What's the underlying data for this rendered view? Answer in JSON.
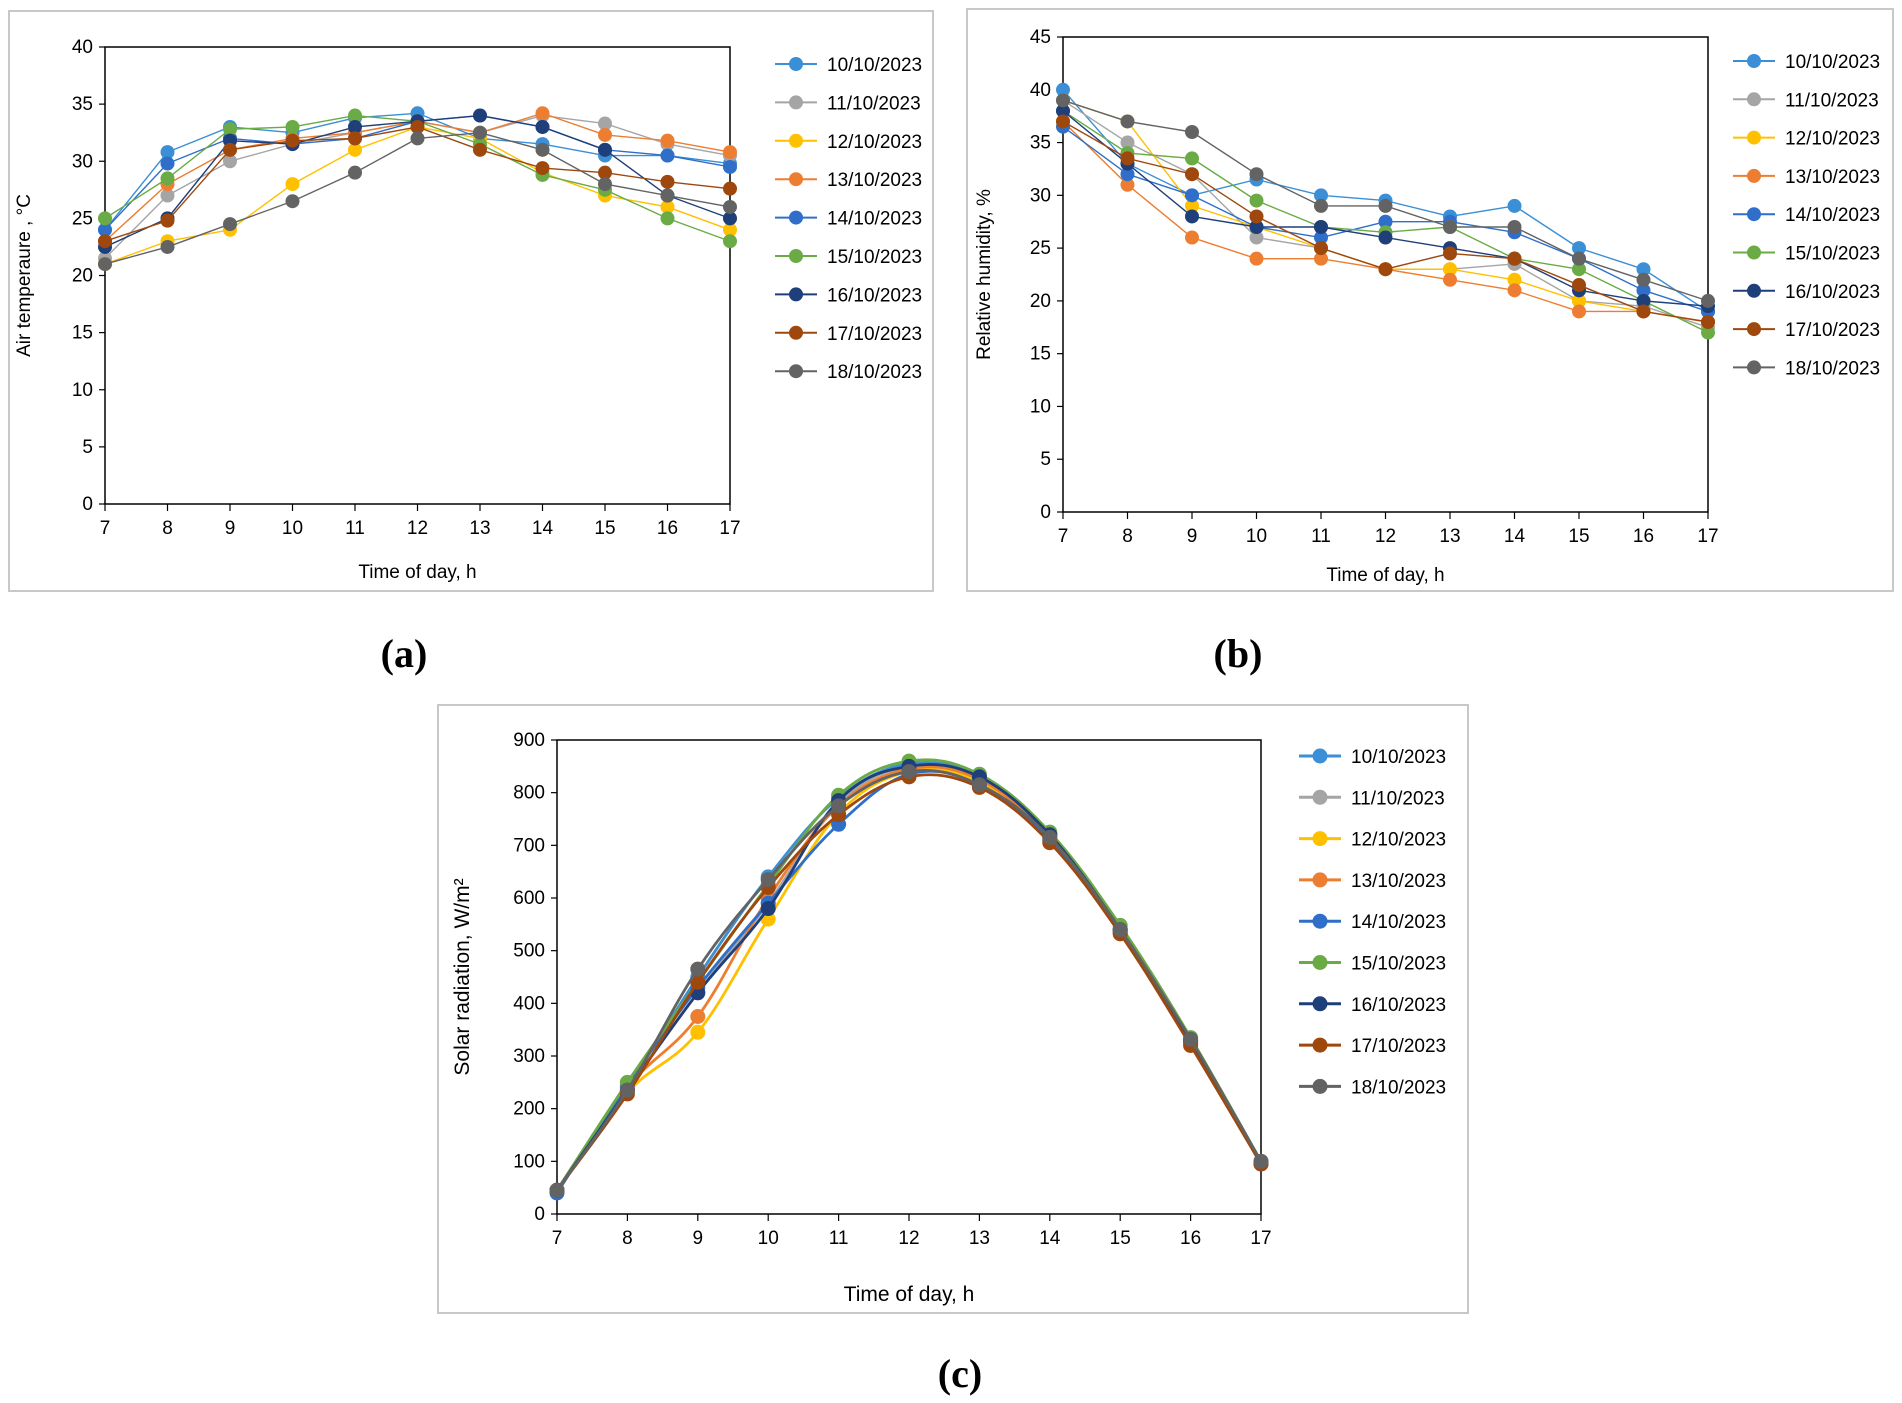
{
  "colors": {
    "10/10/2023": "#3a8fd6",
    "11/10/2023": "#a5a5a5",
    "12/10/2023": "#ffc000",
    "13/10/2023": "#ed7d31",
    "14/10/2023": "#2f6fc9",
    "15/10/2023": "#6aab45",
    "16/10/2023": "#1f3f7a",
    "17/10/2023": "#9e480e",
    "18/10/2023": "#636363"
  },
  "captions": {
    "a": "(a)",
    "b": "(b)",
    "c": "(c)"
  },
  "chart_data": [
    {
      "id": "a",
      "type": "line",
      "title": "",
      "xlabel": "Time of day, h",
      "ylabel": "Air temperaure , °C",
      "x": [
        7,
        8,
        9,
        10,
        11,
        12,
        13,
        14,
        15,
        16,
        17
      ],
      "xlim": [
        7,
        17
      ],
      "ylim": [
        0,
        40
      ],
      "yticks": [
        0,
        5,
        10,
        15,
        20,
        25,
        30,
        35,
        40
      ],
      "legend": "right",
      "series": [
        {
          "name": "10/10/2023",
          "values": [
            24.0,
            30.8,
            33.0,
            32.5,
            33.8,
            34.2,
            32.0,
            31.5,
            30.5,
            30.5,
            29.8
          ]
        },
        {
          "name": "11/10/2023",
          "values": [
            21.5,
            27.0,
            30.0,
            31.5,
            32.5,
            33.5,
            32.5,
            34.0,
            33.3,
            31.5,
            30.5
          ]
        },
        {
          "name": "12/10/2023",
          "values": [
            21.0,
            23.0,
            24.0,
            28.0,
            31.0,
            33.0,
            32.0,
            29.0,
            27.0,
            26.0,
            24.0
          ]
        },
        {
          "name": "13/10/2023",
          "values": [
            23.0,
            28.0,
            31.0,
            32.0,
            32.5,
            33.5,
            32.5,
            34.2,
            32.3,
            31.8,
            30.8
          ]
        },
        {
          "name": "14/10/2023",
          "values": [
            24.0,
            29.8,
            32.0,
            31.5,
            32.0,
            33.5,
            34.0,
            33.0,
            31.0,
            30.5,
            29.5
          ]
        },
        {
          "name": "15/10/2023",
          "values": [
            25.0,
            28.5,
            32.8,
            33.0,
            34.0,
            33.5,
            31.5,
            28.8,
            27.5,
            25.0,
            23.0
          ]
        },
        {
          "name": "16/10/2023",
          "values": [
            22.5,
            25.0,
            31.8,
            31.5,
            33.0,
            33.5,
            34.0,
            33.0,
            31.0,
            27.0,
            25.0
          ]
        },
        {
          "name": "17/10/2023",
          "values": [
            23.0,
            24.8,
            31.0,
            31.8,
            32.0,
            33.0,
            31.0,
            29.4,
            29.0,
            28.2,
            27.6
          ]
        },
        {
          "name": "18/10/2023",
          "values": [
            21.0,
            22.5,
            24.5,
            26.5,
            29.0,
            32.0,
            32.5,
            31.0,
            28.0,
            27.0,
            26.0
          ]
        }
      ]
    },
    {
      "id": "b",
      "type": "line",
      "title": "",
      "xlabel": "Time of day, h",
      "ylabel": "Relative humidity, %",
      "x": [
        7,
        8,
        9,
        10,
        11,
        12,
        13,
        14,
        15,
        16,
        17
      ],
      "xlim": [
        7,
        17
      ],
      "ylim": [
        0,
        45
      ],
      "yticks": [
        0,
        5,
        10,
        15,
        20,
        25,
        30,
        35,
        40,
        45
      ],
      "legend": "right",
      "series": [
        {
          "name": "10/10/2023",
          "values": [
            40.0,
            33.0,
            30.0,
            31.5,
            30.0,
            29.5,
            28.0,
            29.0,
            25.0,
            23.0,
            19.0
          ]
        },
        {
          "name": "11/10/2023",
          "values": [
            39.0,
            35.0,
            32.0,
            26.0,
            25.0,
            23.0,
            23.0,
            23.5,
            20.0,
            19.5,
            17.5
          ]
        },
        {
          "name": "12/10/2023",
          "values": [
            39.0,
            37.0,
            29.0,
            27.0,
            25.0,
            23.0,
            23.0,
            22.0,
            20.0,
            19.0,
            18.0
          ]
        },
        {
          "name": "13/10/2023",
          "values": [
            37.0,
            31.0,
            26.0,
            24.0,
            24.0,
            23.0,
            22.0,
            21.0,
            19.0,
            19.0,
            18.0
          ]
        },
        {
          "name": "14/10/2023",
          "values": [
            36.5,
            32.0,
            30.0,
            27.0,
            26.0,
            27.5,
            27.5,
            26.5,
            24.0,
            21.0,
            19.0
          ]
        },
        {
          "name": "15/10/2023",
          "values": [
            38.0,
            34.0,
            33.5,
            29.5,
            27.0,
            26.5,
            27.0,
            24.0,
            23.0,
            20.0,
            17.0
          ]
        },
        {
          "name": "16/10/2023",
          "values": [
            38.0,
            33.0,
            28.0,
            27.0,
            27.0,
            26.0,
            25.0,
            24.0,
            21.0,
            20.0,
            19.5
          ]
        },
        {
          "name": "17/10/2023",
          "values": [
            37.0,
            33.5,
            32.0,
            28.0,
            25.0,
            23.0,
            24.5,
            24.0,
            21.5,
            19.0,
            18.0
          ]
        },
        {
          "name": "18/10/2023",
          "values": [
            39.0,
            37.0,
            36.0,
            32.0,
            29.0,
            29.0,
            27.0,
            27.0,
            24.0,
            22.0,
            20.0
          ]
        }
      ]
    },
    {
      "id": "c",
      "type": "line",
      "title": "",
      "xlabel": "Time of day, h",
      "ylabel": "Solar radiation, W/m²",
      "x": [
        7,
        8,
        9,
        10,
        11,
        12,
        13,
        14,
        15,
        16,
        17
      ],
      "xlim": [
        7,
        17
      ],
      "ylim": [
        0,
        900
      ],
      "yticks": [
        0,
        100,
        200,
        300,
        400,
        500,
        600,
        700,
        800,
        900
      ],
      "legend": "right",
      "smooth": true,
      "series": [
        {
          "name": "10/10/2023",
          "values": [
            45,
            240,
            450,
            640,
            790,
            855,
            830,
            720,
            540,
            330,
            95
          ]
        },
        {
          "name": "11/10/2023",
          "values": [
            45,
            235,
            420,
            590,
            780,
            850,
            830,
            720,
            540,
            330,
            98
          ]
        },
        {
          "name": "12/10/2023",
          "values": [
            45,
            230,
            345,
            560,
            760,
            840,
            820,
            710,
            535,
            325,
            95
          ]
        },
        {
          "name": "13/10/2023",
          "values": [
            45,
            240,
            375,
            600,
            775,
            845,
            825,
            715,
            538,
            328,
            96
          ]
        },
        {
          "name": "14/10/2023",
          "values": [
            40,
            245,
            430,
            590,
            740,
            835,
            815,
            710,
            535,
            325,
            95
          ]
        },
        {
          "name": "15/10/2023",
          "values": [
            45,
            250,
            440,
            625,
            795,
            860,
            835,
            725,
            548,
            335,
            100
          ]
        },
        {
          "name": "16/10/2023",
          "values": [
            45,
            235,
            420,
            580,
            785,
            850,
            830,
            720,
            540,
            330,
            98
          ]
        },
        {
          "name": "17/10/2023",
          "values": [
            45,
            228,
            440,
            620,
            758,
            830,
            810,
            705,
            532,
            320,
            95
          ]
        },
        {
          "name": "18/10/2023",
          "values": [
            45,
            235,
            465,
            635,
            775,
            840,
            815,
            715,
            540,
            332,
            100
          ]
        }
      ]
    }
  ]
}
